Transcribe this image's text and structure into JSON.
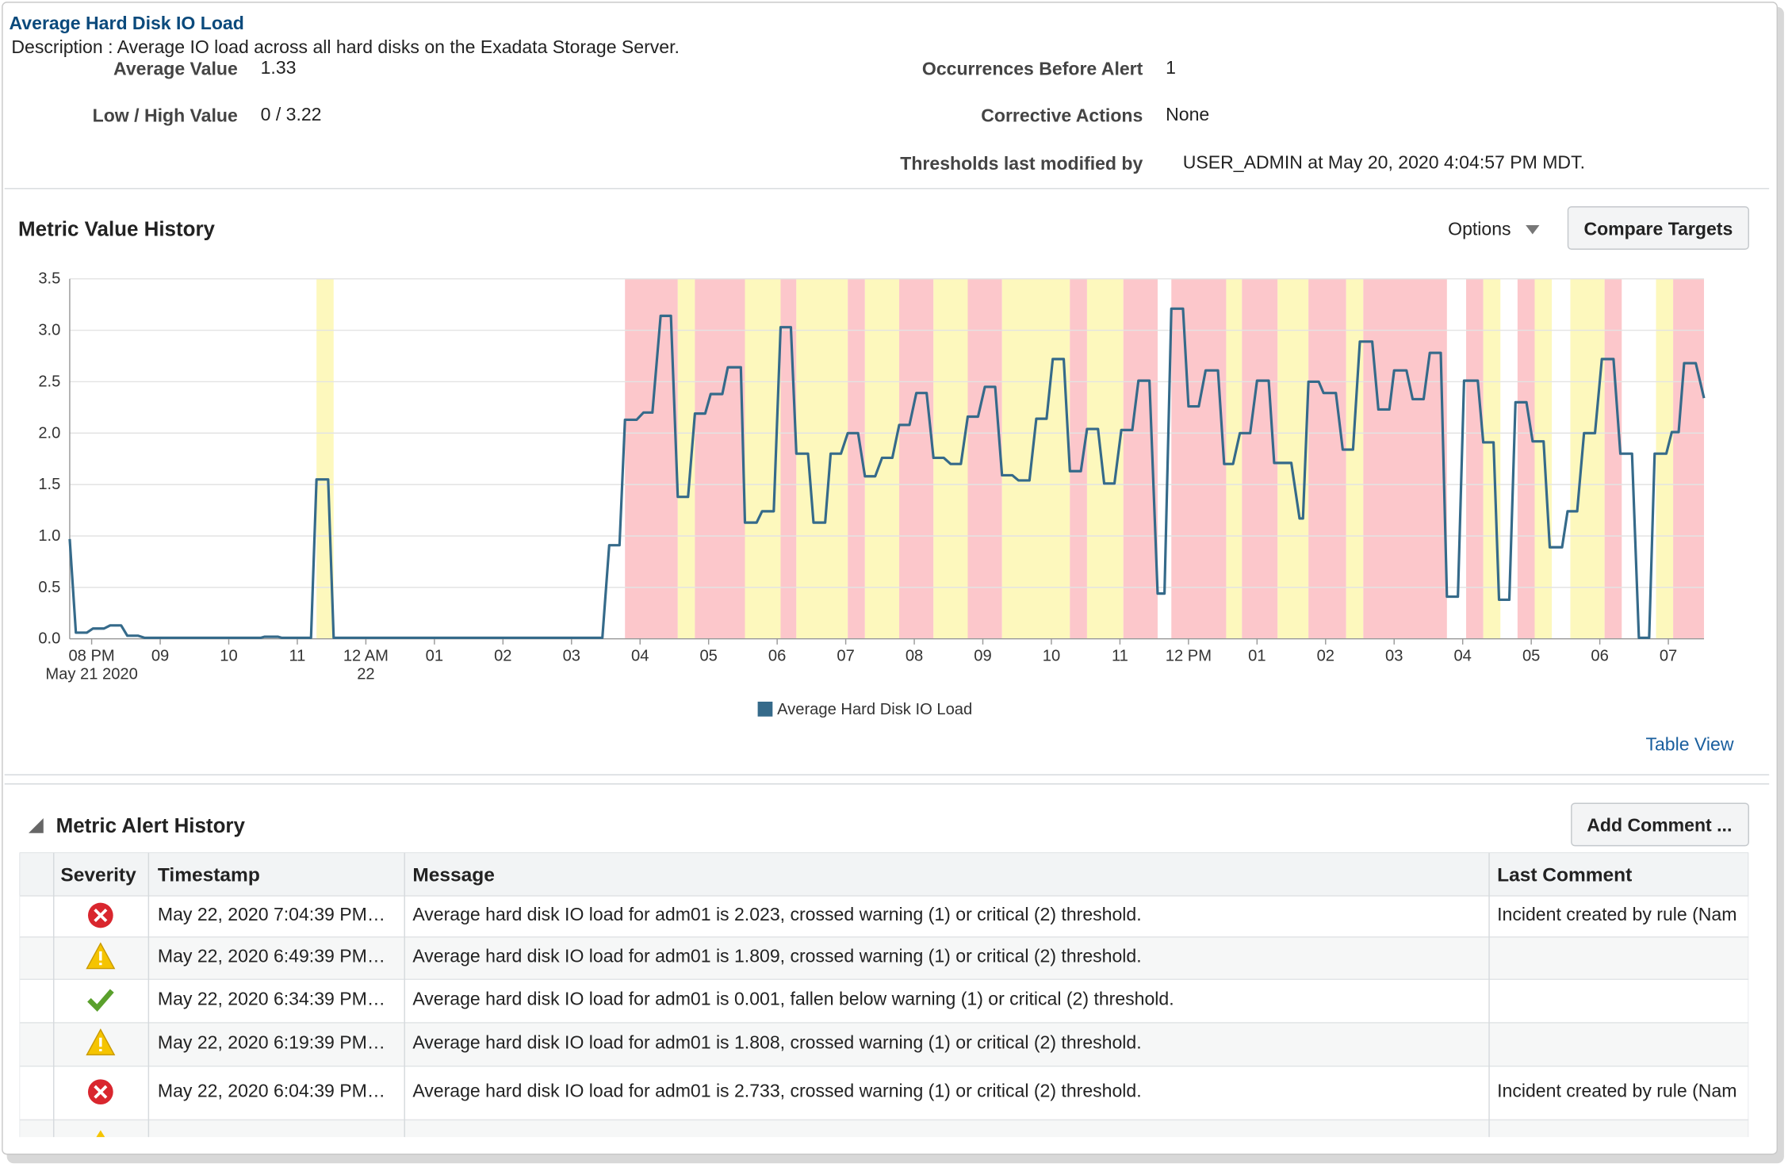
{
  "header": {
    "title": "Average Hard Disk IO Load",
    "description": "Description : Average IO load across all hard disks on the Exadata Storage Server.",
    "fields": [
      {
        "label": "Average Value",
        "value": "1.33"
      },
      {
        "label": "Low / High Value",
        "value": "0 / 3.22"
      },
      {
        "label": "Occurrences Before Alert",
        "value": "1"
      },
      {
        "label": "Corrective Actions",
        "value": "None"
      },
      {
        "label": "Thresholds last modified by",
        "value": "USER_ADMIN at May 20, 2020 4:04:57 PM MDT."
      }
    ]
  },
  "metric_history": {
    "title": "Metric Value History",
    "options": "Options",
    "compare_button": "Compare Targets",
    "table_view": "Table View"
  },
  "chart_data": {
    "type": "line",
    "x": [
      19.68,
      19.77,
      19.93,
      20.02,
      20.18,
      20.27,
      20.43,
      20.52,
      20.68,
      20.77,
      22.47,
      22.52,
      22.72,
      22.77,
      23.2,
      23.28,
      23.45,
      23.53,
      27.45,
      27.55,
      27.7,
      27.78,
      27.95,
      28.05,
      28.18,
      28.3,
      28.45,
      28.55,
      28.7,
      28.8,
      28.95,
      29.03,
      29.2,
      29.28,
      29.47,
      29.53,
      29.7,
      29.78,
      29.95,
      30.05,
      30.2,
      30.28,
      30.45,
      30.53,
      30.7,
      30.78,
      30.93,
      31.03,
      31.18,
      31.28,
      31.43,
      31.53,
      31.68,
      31.78,
      31.93,
      32.03,
      32.18,
      32.28,
      32.43,
      32.53,
      32.68,
      32.78,
      32.93,
      33.03,
      33.18,
      33.28,
      33.43,
      33.52,
      33.68,
      33.78,
      33.93,
      34.02,
      34.18,
      34.27,
      34.43,
      34.52,
      34.68,
      34.77,
      34.92,
      35.02,
      35.18,
      35.27,
      35.43,
      35.55,
      35.65,
      35.75,
      35.92,
      36.0,
      36.15,
      36.25,
      36.43,
      36.52,
      36.65,
      36.75,
      36.9,
      37.0,
      37.17,
      37.25,
      37.5,
      37.62,
      37.67,
      37.75,
      37.9,
      37.97,
      38.15,
      38.25,
      38.4,
      38.5,
      38.68,
      38.77,
      38.93,
      39.0,
      39.18,
      39.27,
      39.43,
      39.52,
      39.68,
      39.77,
      39.93,
      40.02,
      40.22,
      40.3,
      40.45,
      40.53,
      40.68,
      40.77,
      40.93,
      41.02,
      41.18,
      41.27,
      41.45,
      41.53,
      41.67,
      41.77,
      41.93,
      42.03,
      42.2,
      42.3,
      42.47,
      42.57,
      42.72,
      42.8,
      42.97,
      43.05,
      43.15,
      43.23,
      43.4,
      43.52
    ],
    "series": [
      {
        "name": "Average Hard Disk IO Load",
        "color": "#356a8a",
        "values": [
          0.97,
          0.06,
          0.06,
          0.1,
          0.1,
          0.13,
          0.13,
          0.03,
          0.03,
          0.01,
          0.01,
          0.02,
          0.02,
          0.01,
          0.01,
          1.55,
          1.55,
          0.01,
          0.01,
          0.91,
          0.91,
          2.13,
          2.13,
          2.2,
          2.2,
          3.14,
          3.14,
          1.38,
          1.38,
          2.19,
          2.19,
          2.38,
          2.38,
          2.64,
          2.64,
          1.13,
          1.13,
          1.24,
          1.24,
          3.03,
          3.03,
          1.8,
          1.8,
          1.13,
          1.13,
          1.8,
          1.8,
          2.0,
          2.0,
          1.58,
          1.58,
          1.76,
          1.76,
          2.08,
          2.08,
          2.39,
          2.39,
          1.76,
          1.76,
          1.7,
          1.7,
          2.16,
          2.16,
          2.45,
          2.45,
          1.59,
          1.59,
          1.54,
          1.54,
          2.14,
          2.14,
          2.72,
          2.72,
          1.63,
          1.63,
          2.04,
          2.04,
          1.51,
          1.51,
          2.03,
          2.03,
          2.51,
          2.51,
          0.44,
          0.44,
          3.21,
          3.21,
          2.26,
          2.26,
          2.61,
          2.61,
          1.7,
          1.7,
          2.0,
          2.0,
          2.51,
          2.51,
          1.71,
          1.71,
          1.17,
          1.17,
          2.5,
          2.5,
          2.39,
          2.39,
          1.84,
          1.84,
          2.89,
          2.89,
          2.23,
          2.23,
          2.61,
          2.61,
          2.33,
          2.33,
          2.78,
          2.78,
          0.41,
          0.41,
          2.51,
          2.51,
          1.91,
          1.91,
          0.38,
          0.38,
          2.3,
          2.3,
          1.92,
          1.92,
          0.89,
          0.89,
          1.24,
          1.24,
          2.0,
          2.0,
          2.72,
          2.72,
          1.8,
          1.8,
          0.01,
          0.01,
          1.8,
          1.8,
          2.01,
          2.01,
          2.68,
          2.68,
          2.34
        ]
      }
    ],
    "bands": [
      {
        "x": [
          23.28,
          23.53
        ],
        "color": "#fdf8bd"
      },
      {
        "x": [
          27.78,
          28.55
        ],
        "color": "#fcc7cb"
      },
      {
        "x": [
          28.55,
          28.8
        ],
        "color": "#fdf8bd"
      },
      {
        "x": [
          28.8,
          29.53
        ],
        "color": "#fcc7cb"
      },
      {
        "x": [
          29.53,
          30.05
        ],
        "color": "#fdf8bd"
      },
      {
        "x": [
          30.05,
          30.28
        ],
        "color": "#fcc7cb"
      },
      {
        "x": [
          30.28,
          31.03
        ],
        "color": "#fdf8bd"
      },
      {
        "x": [
          31.03,
          31.28
        ],
        "color": "#fcc7cb"
      },
      {
        "x": [
          31.28,
          31.78
        ],
        "color": "#fdf8bd"
      },
      {
        "x": [
          31.78,
          32.28
        ],
        "color": "#fcc7cb"
      },
      {
        "x": [
          32.28,
          32.78
        ],
        "color": "#fdf8bd"
      },
      {
        "x": [
          32.78,
          33.28
        ],
        "color": "#fcc7cb"
      },
      {
        "x": [
          33.28,
          34.27
        ],
        "color": "#fdf8bd"
      },
      {
        "x": [
          34.27,
          34.52
        ],
        "color": "#fcc7cb"
      },
      {
        "x": [
          34.52,
          35.05
        ],
        "color": "#fdf8bd"
      },
      {
        "x": [
          35.05,
          35.55
        ],
        "color": "#fcc7cb"
      },
      {
        "x": [
          35.75,
          36.55
        ],
        "color": "#fcc7cb"
      },
      {
        "x": [
          36.55,
          36.78
        ],
        "color": "#fdf8bd"
      },
      {
        "x": [
          36.78,
          37.3
        ],
        "color": "#fcc7cb"
      },
      {
        "x": [
          37.3,
          37.75
        ],
        "color": "#fdf8bd"
      },
      {
        "x": [
          37.75,
          38.3
        ],
        "color": "#fcc7cb"
      },
      {
        "x": [
          38.3,
          38.55
        ],
        "color": "#fdf8bd"
      },
      {
        "x": [
          38.55,
          39.77
        ],
        "color": "#fcc7cb"
      },
      {
        "x": [
          40.05,
          40.3
        ],
        "color": "#fcc7cb"
      },
      {
        "x": [
          40.3,
          40.55
        ],
        "color": "#fdf8bd"
      },
      {
        "x": [
          40.8,
          41.05
        ],
        "color": "#fcc7cb"
      },
      {
        "x": [
          41.05,
          41.3
        ],
        "color": "#fdf8bd"
      },
      {
        "x": [
          41.57,
          42.07
        ],
        "color": "#fdf8bd"
      },
      {
        "x": [
          42.07,
          42.32
        ],
        "color": "#fcc7cb"
      },
      {
        "x": [
          42.82,
          43.07
        ],
        "color": "#fdf8bd"
      },
      {
        "x": [
          43.07,
          43.52
        ],
        "color": "#fcc7cb"
      }
    ],
    "xlim": [
      19.68,
      43.52
    ],
    "xticks": [
      {
        "value": 20,
        "label": "08 PM"
      },
      {
        "value": 21,
        "label": "09"
      },
      {
        "value": 22,
        "label": "10"
      },
      {
        "value": 23,
        "label": "11"
      },
      {
        "value": 24,
        "label": "12 AM"
      },
      {
        "value": 25,
        "label": "01"
      },
      {
        "value": 26,
        "label": "02"
      },
      {
        "value": 27,
        "label": "03"
      },
      {
        "value": 28,
        "label": "04"
      },
      {
        "value": 29,
        "label": "05"
      },
      {
        "value": 30,
        "label": "06"
      },
      {
        "value": 31,
        "label": "07"
      },
      {
        "value": 32,
        "label": "08"
      },
      {
        "value": 33,
        "label": "09"
      },
      {
        "value": 34,
        "label": "10"
      },
      {
        "value": 35,
        "label": "11"
      },
      {
        "value": 36,
        "label": "12 PM"
      },
      {
        "value": 37,
        "label": "01"
      },
      {
        "value": 38,
        "label": "02"
      },
      {
        "value": 39,
        "label": "03"
      },
      {
        "value": 40,
        "label": "04"
      },
      {
        "value": 41,
        "label": "05"
      },
      {
        "value": 42,
        "label": "06"
      },
      {
        "value": 43,
        "label": "07"
      }
    ],
    "x_sublabels": [
      {
        "value": 20,
        "label": "May 21 2020"
      },
      {
        "value": 24,
        "label": "22"
      }
    ],
    "ylim": [
      0,
      3.5
    ],
    "yticks": [
      {
        "value": 0,
        "label": "0.0"
      },
      {
        "value": 0.5,
        "label": "0.5"
      },
      {
        "value": 1,
        "label": "1.0"
      },
      {
        "value": 1.5,
        "label": "1.5"
      },
      {
        "value": 2,
        "label": "2.0"
      },
      {
        "value": 2.5,
        "label": "2.5"
      },
      {
        "value": 3,
        "label": "3.0"
      },
      {
        "value": 3.5,
        "label": "3.5"
      }
    ],
    "grid": true
  },
  "alert_history": {
    "title": "Metric Alert History",
    "add_button": "Add Comment ...",
    "table": {
      "columns": [
        "Severity",
        "Timestamp",
        "Message",
        "Last Comment"
      ],
      "rows": [
        [
          "May 22, 2020 7:04:39 PM…",
          "Average hard disk IO load for adm01 is 2.023, crossed warning (1) or critical (2) threshold.",
          "Incident created by rule (Nam"
        ],
        [
          "May 22, 2020 6:49:39 PM…",
          "Average hard disk IO load for adm01 is 1.809, crossed warning (1) or critical (2) threshold.",
          ""
        ],
        [
          "May 22, 2020 6:34:39 PM…",
          "Average hard disk IO load for adm01 is 0.001, fallen below warning (1) or critical (2) threshold.",
          ""
        ],
        [
          "May 22, 2020 6:19:39 PM…",
          "Average hard disk IO load for adm01 is 1.808, crossed warning (1) or critical (2) threshold.",
          ""
        ],
        [
          "May 22, 2020 6:04:39 PM…",
          "Average hard disk IO load for adm01 is 2.733, crossed warning (1) or critical (2) threshold.",
          "Incident created by rule (Nam"
        ]
      ]
    }
  }
}
